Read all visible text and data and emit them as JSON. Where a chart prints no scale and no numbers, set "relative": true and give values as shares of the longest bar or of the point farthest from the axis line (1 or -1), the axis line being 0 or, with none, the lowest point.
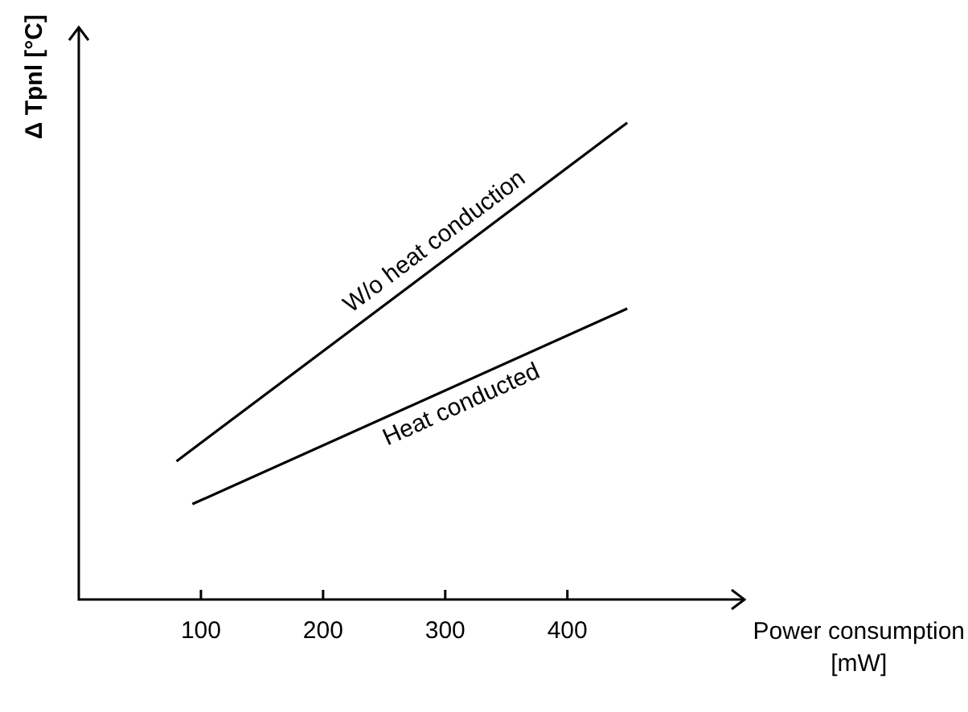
{
  "chart_data": {
    "type": "line",
    "relative": true,
    "xlabel": "Power consumption [mW]",
    "ylabel": "Δ Tpnl [°C]",
    "xlim": [
      0,
      545
    ],
    "xticks": [
      100,
      200,
      300,
      400
    ],
    "marker": "none",
    "line_style": "solid",
    "series": [
      {
        "name": "W/o heat conduction",
        "color": "#000000",
        "x": [
          80,
          449
        ],
        "values": [
          0.29,
          1
        ]
      },
      {
        "name": "Heat conducted",
        "color": "#000000",
        "x": [
          93,
          449
        ],
        "values": [
          0.2,
          0.61
        ]
      }
    ]
  }
}
